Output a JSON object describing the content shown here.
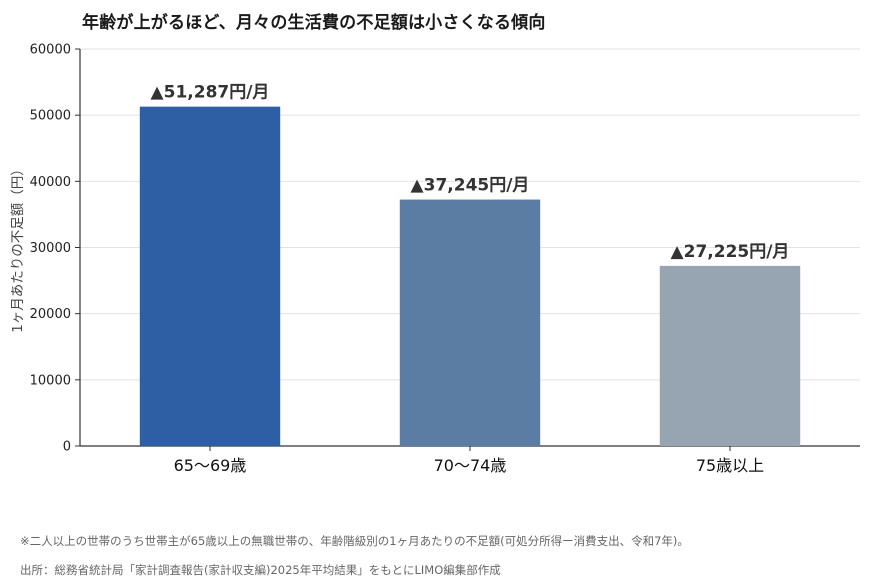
{
  "chart_data": {
    "type": "bar",
    "title": "年齢が上がるほど、月々の生活費の不足額は小さくなる傾向",
    "xlabel": "",
    "ylabel": "1ヶ月あたりの不足額（円）",
    "categories": [
      "65〜69歳",
      "70〜74歳",
      "75歳以上"
    ],
    "values": [
      51287,
      37245,
      27225
    ],
    "data_labels": [
      "▲51,287円/月",
      "▲37,245円/月",
      "▲27,225円/月"
    ],
    "bar_colors": [
      "#2e5ea3",
      "#5b7da3",
      "#97a4b1"
    ],
    "ylim": [
      0,
      60000
    ],
    "yticks": [
      0,
      10000,
      20000,
      30000,
      40000,
      50000,
      60000
    ],
    "ytick_labels": [
      "0",
      "10000",
      "20000",
      "30000",
      "40000",
      "50000",
      "60000"
    ],
    "grid": true,
    "legend": "none"
  },
  "notes": {
    "footnote": "※二人以上の世帯のうち世帯主が65歳以上の無職世帯の、年齢階級別の1ヶ月あたりの不足額(可処分所得ー消費支出、令和7年)。",
    "source": "出所：総務省統計局「家計調査報告(家計収支編)2025年平均結果」をもとにLIMO編集部作成"
  }
}
